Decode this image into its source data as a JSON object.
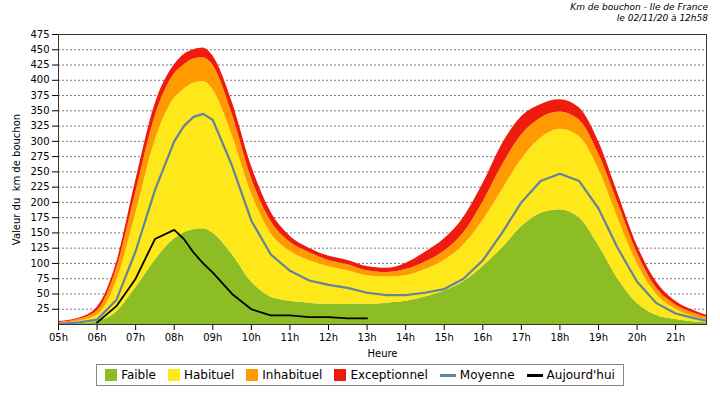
{
  "chart_data": {
    "type": "area",
    "title": "Km de bouchon - Ile de France",
    "subtitle": "le 02/11/20 à 12h58",
    "x_label": "Heure",
    "y_label": "Valeur du  km de bouchon",
    "x": [
      5,
      5.5,
      6,
      6.5,
      7,
      7.5,
      8,
      8.25,
      8.5,
      8.75,
      9,
      9.5,
      10,
      10.5,
      11,
      11.5,
      12,
      12.5,
      13,
      13.5,
      14,
      14.5,
      15,
      15.5,
      16,
      16.5,
      17,
      17.5,
      18,
      18.5,
      19,
      19.5,
      20,
      20.5,
      21,
      21.5,
      21.8
    ],
    "xlim": [
      5,
      21.8
    ],
    "xticks": [
      {
        "value": 5,
        "label": "05h"
      },
      {
        "value": 6,
        "label": "06h"
      },
      {
        "value": 7,
        "label": "07h"
      },
      {
        "value": 8,
        "label": "08h"
      },
      {
        "value": 9,
        "label": "09h"
      },
      {
        "value": 10,
        "label": "10h"
      },
      {
        "value": 11,
        "label": "11h"
      },
      {
        "value": 12,
        "label": "12h"
      },
      {
        "value": 13,
        "label": "13h"
      },
      {
        "value": 14,
        "label": "14h"
      },
      {
        "value": 15,
        "label": "15h"
      },
      {
        "value": 16,
        "label": "16h"
      },
      {
        "value": 17,
        "label": "17h"
      },
      {
        "value": 18,
        "label": "18h"
      },
      {
        "value": 19,
        "label": "19h"
      },
      {
        "value": 20,
        "label": "20h"
      },
      {
        "value": 21,
        "label": "21h"
      }
    ],
    "ylim": [
      0,
      475
    ],
    "yticks": [
      25,
      50,
      75,
      100,
      125,
      150,
      175,
      200,
      225,
      250,
      275,
      300,
      325,
      350,
      375,
      400,
      425,
      450,
      475
    ],
    "grid": true,
    "stacked": true,
    "legend": "bottom",
    "series": [
      {
        "name": "Faible",
        "type": "area",
        "color": "#8cbd25",
        "values": [
          0,
          1,
          5,
          20,
          60,
          105,
          140,
          150,
          155,
          157,
          150,
          115,
          70,
          45,
          38,
          35,
          33,
          33,
          33,
          35,
          38,
          45,
          55,
          70,
          95,
          125,
          160,
          182,
          188,
          175,
          130,
          75,
          35,
          15,
          8,
          4,
          3
        ]
      },
      {
        "name": "Habituel",
        "type": "area",
        "color": "#ffe81a",
        "values": [
          2,
          4,
          10,
          50,
          120,
          195,
          230,
          235,
          240,
          241,
          235,
          195,
          145,
          105,
          82,
          70,
          62,
          55,
          47,
          43,
          42,
          45,
          50,
          60,
          75,
          95,
          110,
          123,
          132,
          133,
          125,
          100,
          65,
          35,
          17,
          8,
          5
        ]
      },
      {
        "name": "Inhabituel",
        "type": "area",
        "color": "#ff9a00",
        "values": [
          1,
          3,
          7,
          20,
          35,
          40,
          40,
          40,
          40,
          39,
          40,
          35,
          25,
          20,
          15,
          13,
          10,
          10,
          8,
          7,
          10,
          12,
          15,
          20,
          30,
          40,
          40,
          33,
          28,
          27,
          25,
          25,
          18,
          10,
          7,
          6,
          4
        ]
      },
      {
        "name": "Exceptionnel",
        "type": "area",
        "color": "#ee1c0e",
        "values": [
          2,
          2,
          6,
          10,
          20,
          20,
          15,
          17,
          15,
          16,
          15,
          20,
          20,
          15,
          10,
          7,
          7,
          7,
          7,
          7,
          10,
          16,
          20,
          25,
          30,
          35,
          30,
          22,
          20,
          20,
          20,
          15,
          12,
          10,
          6,
          4,
          3
        ]
      },
      {
        "name": "Moyenne",
        "type": "line",
        "color": "#64849a",
        "values": [
          1,
          3,
          8,
          40,
          120,
          220,
          300,
          325,
          340,
          345,
          335,
          260,
          170,
          115,
          88,
          72,
          65,
          60,
          52,
          48,
          48,
          52,
          58,
          75,
          105,
          150,
          200,
          235,
          247,
          235,
          190,
          125,
          70,
          35,
          18,
          10,
          6
        ]
      },
      {
        "name": "Aujourd'hui",
        "type": "line",
        "color": "#000000",
        "values": [
          null,
          null,
          3,
          30,
          75,
          140,
          155,
          140,
          118,
          100,
          85,
          50,
          25,
          15,
          15,
          12,
          12,
          10,
          10,
          null,
          null,
          null,
          null,
          null,
          null,
          null,
          null,
          null,
          null,
          null,
          null,
          null,
          null,
          null,
          null,
          null,
          null
        ]
      }
    ]
  }
}
